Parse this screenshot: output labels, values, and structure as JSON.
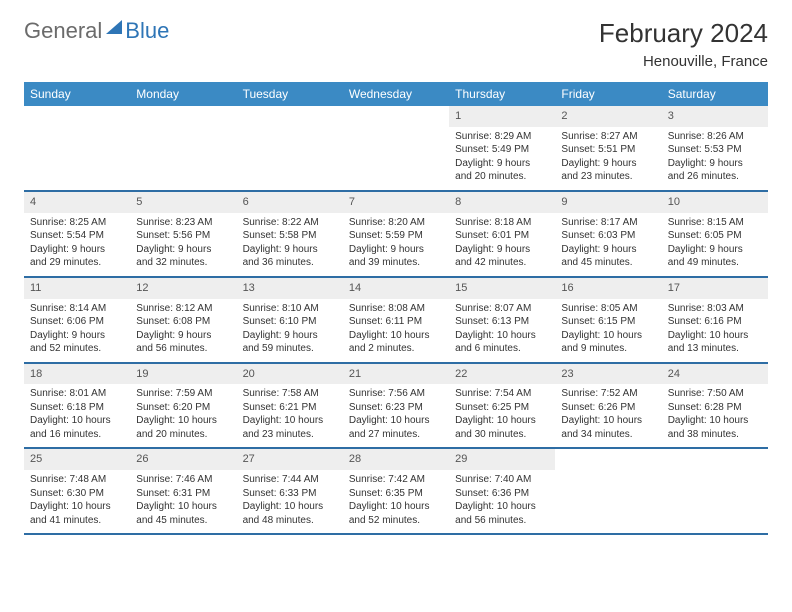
{
  "logo": {
    "gray": "General",
    "blue": "Blue"
  },
  "header": {
    "title": "February 2024",
    "location": "Henouville, France"
  },
  "weekdays": [
    "Sunday",
    "Monday",
    "Tuesday",
    "Wednesday",
    "Thursday",
    "Friday",
    "Saturday"
  ],
  "colors": {
    "header_bg": "#3b8ac4",
    "row_border": "#2e6da4",
    "daynum_bg": "#eeeeee",
    "text": "#333333",
    "logo_gray": "#6b6b6b",
    "logo_blue": "#2e75b6"
  },
  "weeks": [
    [
      null,
      null,
      null,
      null,
      {
        "n": "1",
        "sr": "Sunrise: 8:29 AM",
        "ss": "Sunset: 5:49 PM",
        "d1": "Daylight: 9 hours",
        "d2": "and 20 minutes."
      },
      {
        "n": "2",
        "sr": "Sunrise: 8:27 AM",
        "ss": "Sunset: 5:51 PM",
        "d1": "Daylight: 9 hours",
        "d2": "and 23 minutes."
      },
      {
        "n": "3",
        "sr": "Sunrise: 8:26 AM",
        "ss": "Sunset: 5:53 PM",
        "d1": "Daylight: 9 hours",
        "d2": "and 26 minutes."
      }
    ],
    [
      {
        "n": "4",
        "sr": "Sunrise: 8:25 AM",
        "ss": "Sunset: 5:54 PM",
        "d1": "Daylight: 9 hours",
        "d2": "and 29 minutes."
      },
      {
        "n": "5",
        "sr": "Sunrise: 8:23 AM",
        "ss": "Sunset: 5:56 PM",
        "d1": "Daylight: 9 hours",
        "d2": "and 32 minutes."
      },
      {
        "n": "6",
        "sr": "Sunrise: 8:22 AM",
        "ss": "Sunset: 5:58 PM",
        "d1": "Daylight: 9 hours",
        "d2": "and 36 minutes."
      },
      {
        "n": "7",
        "sr": "Sunrise: 8:20 AM",
        "ss": "Sunset: 5:59 PM",
        "d1": "Daylight: 9 hours",
        "d2": "and 39 minutes."
      },
      {
        "n": "8",
        "sr": "Sunrise: 8:18 AM",
        "ss": "Sunset: 6:01 PM",
        "d1": "Daylight: 9 hours",
        "d2": "and 42 minutes."
      },
      {
        "n": "9",
        "sr": "Sunrise: 8:17 AM",
        "ss": "Sunset: 6:03 PM",
        "d1": "Daylight: 9 hours",
        "d2": "and 45 minutes."
      },
      {
        "n": "10",
        "sr": "Sunrise: 8:15 AM",
        "ss": "Sunset: 6:05 PM",
        "d1": "Daylight: 9 hours",
        "d2": "and 49 minutes."
      }
    ],
    [
      {
        "n": "11",
        "sr": "Sunrise: 8:14 AM",
        "ss": "Sunset: 6:06 PM",
        "d1": "Daylight: 9 hours",
        "d2": "and 52 minutes."
      },
      {
        "n": "12",
        "sr": "Sunrise: 8:12 AM",
        "ss": "Sunset: 6:08 PM",
        "d1": "Daylight: 9 hours",
        "d2": "and 56 minutes."
      },
      {
        "n": "13",
        "sr": "Sunrise: 8:10 AM",
        "ss": "Sunset: 6:10 PM",
        "d1": "Daylight: 9 hours",
        "d2": "and 59 minutes."
      },
      {
        "n": "14",
        "sr": "Sunrise: 8:08 AM",
        "ss": "Sunset: 6:11 PM",
        "d1": "Daylight: 10 hours",
        "d2": "and 2 minutes."
      },
      {
        "n": "15",
        "sr": "Sunrise: 8:07 AM",
        "ss": "Sunset: 6:13 PM",
        "d1": "Daylight: 10 hours",
        "d2": "and 6 minutes."
      },
      {
        "n": "16",
        "sr": "Sunrise: 8:05 AM",
        "ss": "Sunset: 6:15 PM",
        "d1": "Daylight: 10 hours",
        "d2": "and 9 minutes."
      },
      {
        "n": "17",
        "sr": "Sunrise: 8:03 AM",
        "ss": "Sunset: 6:16 PM",
        "d1": "Daylight: 10 hours",
        "d2": "and 13 minutes."
      }
    ],
    [
      {
        "n": "18",
        "sr": "Sunrise: 8:01 AM",
        "ss": "Sunset: 6:18 PM",
        "d1": "Daylight: 10 hours",
        "d2": "and 16 minutes."
      },
      {
        "n": "19",
        "sr": "Sunrise: 7:59 AM",
        "ss": "Sunset: 6:20 PM",
        "d1": "Daylight: 10 hours",
        "d2": "and 20 minutes."
      },
      {
        "n": "20",
        "sr": "Sunrise: 7:58 AM",
        "ss": "Sunset: 6:21 PM",
        "d1": "Daylight: 10 hours",
        "d2": "and 23 minutes."
      },
      {
        "n": "21",
        "sr": "Sunrise: 7:56 AM",
        "ss": "Sunset: 6:23 PM",
        "d1": "Daylight: 10 hours",
        "d2": "and 27 minutes."
      },
      {
        "n": "22",
        "sr": "Sunrise: 7:54 AM",
        "ss": "Sunset: 6:25 PM",
        "d1": "Daylight: 10 hours",
        "d2": "and 30 minutes."
      },
      {
        "n": "23",
        "sr": "Sunrise: 7:52 AM",
        "ss": "Sunset: 6:26 PM",
        "d1": "Daylight: 10 hours",
        "d2": "and 34 minutes."
      },
      {
        "n": "24",
        "sr": "Sunrise: 7:50 AM",
        "ss": "Sunset: 6:28 PM",
        "d1": "Daylight: 10 hours",
        "d2": "and 38 minutes."
      }
    ],
    [
      {
        "n": "25",
        "sr": "Sunrise: 7:48 AM",
        "ss": "Sunset: 6:30 PM",
        "d1": "Daylight: 10 hours",
        "d2": "and 41 minutes."
      },
      {
        "n": "26",
        "sr": "Sunrise: 7:46 AM",
        "ss": "Sunset: 6:31 PM",
        "d1": "Daylight: 10 hours",
        "d2": "and 45 minutes."
      },
      {
        "n": "27",
        "sr": "Sunrise: 7:44 AM",
        "ss": "Sunset: 6:33 PM",
        "d1": "Daylight: 10 hours",
        "d2": "and 48 minutes."
      },
      {
        "n": "28",
        "sr": "Sunrise: 7:42 AM",
        "ss": "Sunset: 6:35 PM",
        "d1": "Daylight: 10 hours",
        "d2": "and 52 minutes."
      },
      {
        "n": "29",
        "sr": "Sunrise: 7:40 AM",
        "ss": "Sunset: 6:36 PM",
        "d1": "Daylight: 10 hours",
        "d2": "and 56 minutes."
      },
      null,
      null
    ]
  ]
}
